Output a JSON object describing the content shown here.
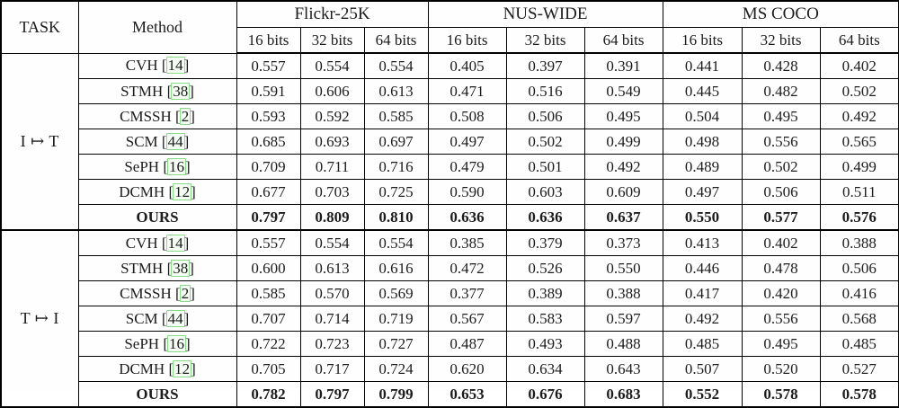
{
  "table": {
    "header": {
      "task": "TASK",
      "method": "Method",
      "datasets": [
        "Flickr-25K",
        "NUS-WIDE",
        "MS COCO"
      ],
      "bit_cols": [
        "16 bits",
        "32 bits",
        "64 bits"
      ]
    },
    "colors": {
      "citation_box_border": "#86dd86",
      "table_border": "#000000",
      "text": "#1c1c1c",
      "background": "#fefefe"
    },
    "groups": [
      {
        "task": "I ↦ T",
        "rows": [
          {
            "method": "CVH",
            "cite": "14",
            "bold": false,
            "values": [
              "0.557",
              "0.554",
              "0.554",
              "0.405",
              "0.397",
              "0.391",
              "0.441",
              "0.428",
              "0.402"
            ]
          },
          {
            "method": "STMH",
            "cite": "38",
            "bold": false,
            "values": [
              "0.591",
              "0.606",
              "0.613",
              "0.471",
              "0.516",
              "0.549",
              "0.445",
              "0.482",
              "0.502"
            ]
          },
          {
            "method": "CMSSH",
            "cite": "2",
            "bold": false,
            "values": [
              "0.593",
              "0.592",
              "0.585",
              "0.508",
              "0.506",
              "0.495",
              "0.504",
              "0.495",
              "0.492"
            ]
          },
          {
            "method": "SCM",
            "cite": "44",
            "bold": false,
            "values": [
              "0.685",
              "0.693",
              "0.697",
              "0.497",
              "0.502",
              "0.499",
              "0.498",
              "0.556",
              "0.565"
            ]
          },
          {
            "method": "SePH",
            "cite": "16",
            "bold": false,
            "values": [
              "0.709",
              "0.711",
              "0.716",
              "0.479",
              "0.501",
              "0.492",
              "0.489",
              "0.502",
              "0.499"
            ]
          },
          {
            "method": "DCMH",
            "cite": "12",
            "bold": false,
            "values": [
              "0.677",
              "0.703",
              "0.725",
              "0.590",
              "0.603",
              "0.609",
              "0.497",
              "0.506",
              "0.511"
            ]
          },
          {
            "method": "OURS",
            "cite": null,
            "bold": true,
            "values": [
              "0.797",
              "0.809",
              "0.810",
              "0.636",
              "0.636",
              "0.637",
              "0.550",
              "0.577",
              "0.576"
            ]
          }
        ]
      },
      {
        "task": "T ↦ I",
        "rows": [
          {
            "method": "CVH",
            "cite": "14",
            "bold": false,
            "values": [
              "0.557",
              "0.554",
              "0.554",
              "0.385",
              "0.379",
              "0.373",
              "0.413",
              "0.402",
              "0.388"
            ]
          },
          {
            "method": "STMH",
            "cite": "38",
            "bold": false,
            "values": [
              "0.600",
              "0.613",
              "0.616",
              "0.472",
              "0.526",
              "0.550",
              "0.446",
              "0.478",
              "0.506"
            ]
          },
          {
            "method": "CMSSH",
            "cite": "2",
            "bold": false,
            "values": [
              "0.585",
              "0.570",
              "0.569",
              "0.377",
              "0.389",
              "0.388",
              "0.417",
              "0.420",
              "0.416"
            ]
          },
          {
            "method": "SCM",
            "cite": "44",
            "bold": false,
            "values": [
              "0.707",
              "0.714",
              "0.719",
              "0.567",
              "0.583",
              "0.597",
              "0.492",
              "0.556",
              "0.568"
            ]
          },
          {
            "method": "SePH",
            "cite": "16",
            "bold": false,
            "values": [
              "0.722",
              "0.723",
              "0.727",
              "0.487",
              "0.493",
              "0.488",
              "0.485",
              "0.495",
              "0.485"
            ]
          },
          {
            "method": "DCMH",
            "cite": "12",
            "bold": false,
            "values": [
              "0.705",
              "0.717",
              "0.724",
              "0.620",
              "0.634",
              "0.643",
              "0.507",
              "0.520",
              "0.527"
            ]
          },
          {
            "method": "OURS",
            "cite": null,
            "bold": true,
            "values": [
              "0.782",
              "0.797",
              "0.799",
              "0.653",
              "0.676",
              "0.683",
              "0.552",
              "0.578",
              "0.578"
            ]
          }
        ]
      }
    ]
  }
}
